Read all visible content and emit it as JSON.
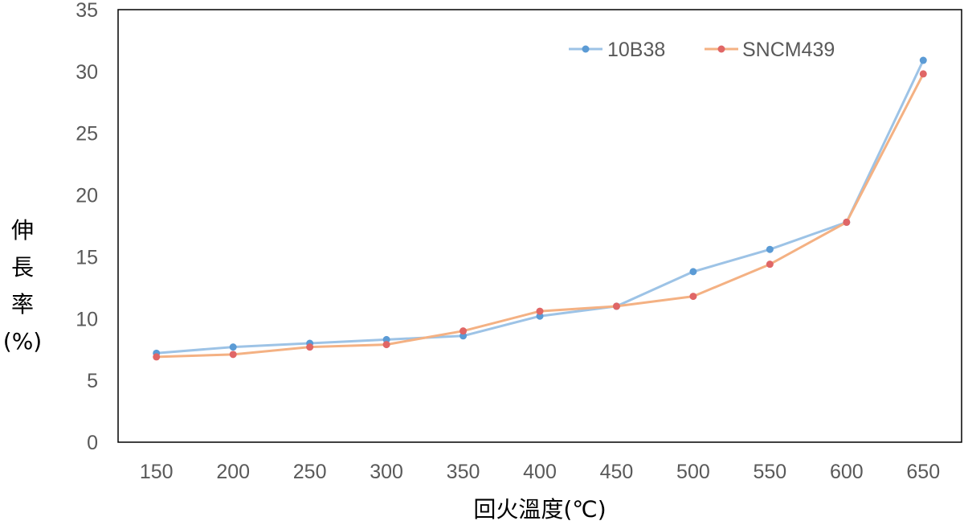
{
  "chart_data": {
    "type": "line",
    "title": "",
    "xlabel": "回火溫度(℃)",
    "ylabel_lines": [
      "伸",
      "長",
      "率",
      "(%)"
    ],
    "categories": [
      "150",
      "200",
      "250",
      "300",
      "350",
      "400",
      "450",
      "500",
      "550",
      "600",
      "650"
    ],
    "ylim": [
      0,
      35
    ],
    "yticks": [
      "0",
      "5",
      "10",
      "15",
      "20",
      "25",
      "30",
      "35"
    ],
    "ytick_values": [
      0,
      5,
      10,
      15,
      20,
      25,
      30,
      35
    ],
    "grid": false,
    "legend_position": "top-right",
    "series": [
      {
        "name": "10B38",
        "line_color": "#9DC3E6",
        "marker_color": "#5B9BD5",
        "values": [
          7.2,
          7.7,
          8.0,
          8.3,
          8.6,
          10.2,
          11.0,
          13.8,
          15.6,
          17.8,
          30.9
        ]
      },
      {
        "name": "SNCM439",
        "line_color": "#F4B183",
        "marker_color": "#E06666",
        "values": [
          6.9,
          7.1,
          7.7,
          7.9,
          9.0,
          10.6,
          11.0,
          11.8,
          14.4,
          17.8,
          29.8
        ]
      }
    ]
  }
}
